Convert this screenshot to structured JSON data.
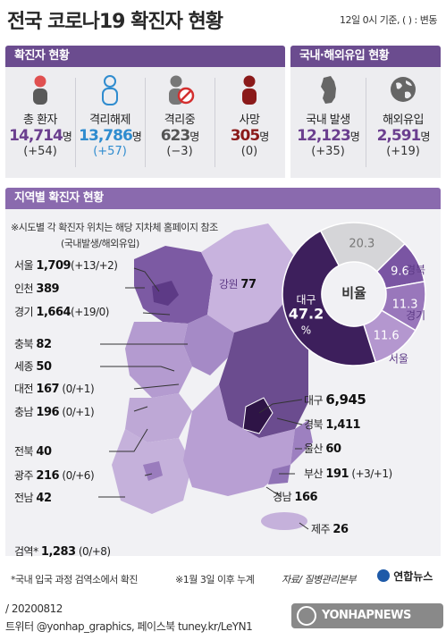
{
  "title": {
    "prefix": "전국 ",
    "emph": "코로나19",
    "suffix": " 확진자 현황"
  },
  "basis": "12일 0시 기준, ( ) : 변동",
  "sections": {
    "confirmed": "확진자 현황",
    "origin": "국내·해외유입 현황",
    "regional": "지역별 확진자 현황"
  },
  "stats": [
    {
      "label": "총 환자",
      "value": "14,714",
      "unit": "명",
      "change": "(+54)",
      "color": "#6b3f8f",
      "icon": "person-icon"
    },
    {
      "label": "격리해제",
      "value": "13,786",
      "unit": "명",
      "change": "(+57)",
      "color": "#2f8ccf",
      "icon": "released-person-icon"
    },
    {
      "label": "격리중",
      "value": "623",
      "unit": "명",
      "change": "(−3)",
      "color": "#555555",
      "icon": "isolated-person-icon"
    },
    {
      "label": "사망",
      "value": "305",
      "unit": "명",
      "change": "(0)",
      "color": "#8b1a1a",
      "icon": "deceased-person-icon"
    }
  ],
  "origin_stats": [
    {
      "label": "국내 발생",
      "value": "12,123",
      "unit": "명",
      "change": "(+35)",
      "color": "#6b3f8f",
      "icon": "korea-map-icon"
    },
    {
      "label": "해외유입",
      "value": "2,591",
      "unit": "명",
      "change": "(+19)",
      "color": "#6b3f8f",
      "icon": "globe-icon"
    }
  ],
  "notes": {
    "site": "※시도별 각 확진자 위치는 해당 지차체 홈페이지 참조",
    "legend_format": "(국내발생/해외유입)",
    "quarantine": "*국내 입국 과정 검역소에서 확진",
    "cumulative": "※1월 3일 이후 누계",
    "source": "자료/ 질병관리본부",
    "date": "/ 20200812",
    "social": "트위터 @yonhap_graphics, 페이스북 tuney.kr/LeYN1",
    "brand": "연합뉴스",
    "watermark": "YONHAPNEWS"
  },
  "regions": [
    {
      "name": "서울",
      "count": "1,709",
      "extra": "(+13/+2)"
    },
    {
      "name": "인천",
      "count": "389",
      "extra": ""
    },
    {
      "name": "경기",
      "count": "1,664",
      "extra": "(+19/0)"
    },
    {
      "name": "강원",
      "count": "77",
      "extra": ""
    },
    {
      "name": "충북",
      "count": "82",
      "extra": ""
    },
    {
      "name": "세종",
      "count": "50",
      "extra": ""
    },
    {
      "name": "대전",
      "count": "167",
      "extra": "(0/+1)"
    },
    {
      "name": "충남",
      "count": "196",
      "extra": "(0/+1)"
    },
    {
      "name": "전북",
      "count": "40",
      "extra": ""
    },
    {
      "name": "광주",
      "count": "216",
      "extra": "(0/+6)"
    },
    {
      "name": "전남",
      "count": "42",
      "extra": ""
    },
    {
      "name": "대구",
      "count": "6,945",
      "extra": ""
    },
    {
      "name": "경북",
      "count": "1,411",
      "extra": ""
    },
    {
      "name": "울산",
      "count": "60",
      "extra": ""
    },
    {
      "name": "부산",
      "count": "191",
      "extra": "(+3/+1)"
    },
    {
      "name": "경남",
      "count": "166",
      "extra": ""
    },
    {
      "name": "제주",
      "count": "26",
      "extra": ""
    },
    {
      "name": "검역*",
      "count": "1,283",
      "extra": "(0/+8)"
    }
  ],
  "chart_data": {
    "type": "pie",
    "title": "비율",
    "unit": "%",
    "slices": [
      {
        "label": "대구",
        "value": 47.2,
        "color": "#3d1f5c"
      },
      {
        "label": "경북",
        "value": 9.6,
        "color": "#7a55a3"
      },
      {
        "label": "경기",
        "value": 11.3,
        "color": "#9977bb"
      },
      {
        "label": "서울",
        "value": 11.6,
        "color": "#b497cf"
      },
      {
        "label": "",
        "value": 20.3,
        "color": "#d5d5d8"
      }
    ]
  }
}
